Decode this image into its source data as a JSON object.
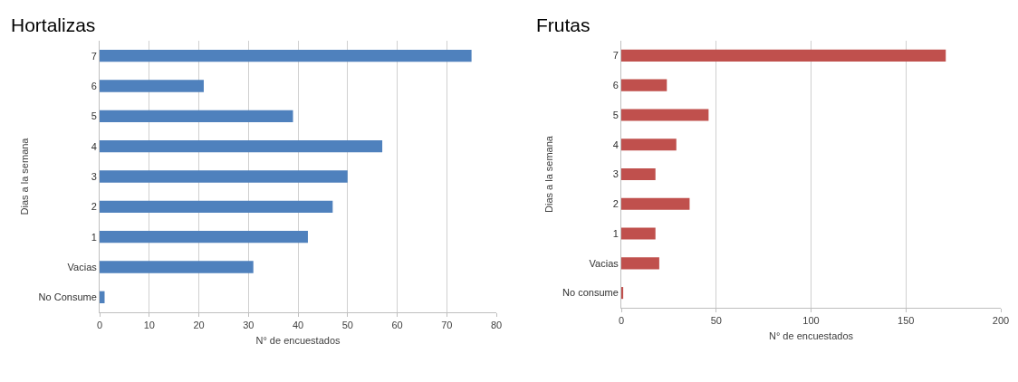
{
  "chart_data": [
    {
      "type": "bar",
      "title": "Hortalizas",
      "orientation": "horizontal",
      "xlabel": "N° de encuestados",
      "ylabel": "Dias a la semana",
      "categories": [
        "7",
        "6",
        "5",
        "4",
        "3",
        "2",
        "1",
        "Vacias",
        "No Consume"
      ],
      "values": [
        75,
        21,
        39,
        57,
        50,
        47,
        42,
        31,
        1
      ],
      "color": "#4f81bd",
      "xlim": [
        0,
        80
      ],
      "xticks": [
        0,
        10,
        20,
        30,
        40,
        50,
        60,
        70,
        80
      ],
      "grid": "x"
    },
    {
      "type": "bar",
      "title": "Frutas",
      "orientation": "horizontal",
      "xlabel": "N° de encuestados",
      "ylabel": "Dias a la semana",
      "categories": [
        "7",
        "6",
        "5",
        "4",
        "3",
        "2",
        "1",
        "Vacias",
        "No consume"
      ],
      "values": [
        171,
        24,
        46,
        29,
        18,
        36,
        18,
        20,
        1
      ],
      "color": "#c0504d",
      "xlim": [
        0,
        200
      ],
      "xticks": [
        0,
        50,
        100,
        150,
        200
      ],
      "grid": "x"
    }
  ]
}
